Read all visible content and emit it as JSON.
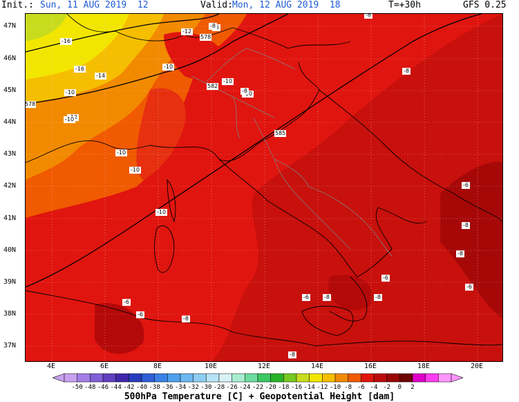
{
  "header": {
    "init_label": "Init.:",
    "init_value": "Sun, 11 AUG 2019  12",
    "valid_label": "Valid:",
    "valid_value": "Mon, 12 AUG 2019  18",
    "lead": "T=+30h",
    "model": "GFS 0.25"
  },
  "map": {
    "variable": "500hPa Temperature [C] + Geopotential Height [dam]",
    "lat_labels": [
      "47N",
      "46N",
      "45N",
      "44N",
      "43N",
      "42N",
      "41N",
      "40N",
      "39N",
      "38N",
      "37N"
    ],
    "lon_labels": [
      "4E",
      "6E",
      "8E",
      "10E",
      "12E",
      "14E",
      "16E",
      "18E",
      "20E"
    ],
    "temperature_labels": [
      "-8",
      "-12",
      "-16",
      "-10",
      "-16",
      "-14",
      "-10",
      "-12",
      "-10",
      "-10",
      "-10",
      "-10",
      "-10",
      "-8",
      "-10",
      "-6",
      "-8",
      "-8",
      "-6",
      "-6",
      "-8",
      "-6",
      "-8",
      "-6",
      "-6",
      "-8",
      "-8",
      "-8",
      "-6",
      "-8"
    ],
    "height_labels": [
      "578",
      "582",
      "578",
      "585"
    ],
    "colors": {
      "yellow": "#f2e600",
      "green_yellow": "#c8dc1e",
      "gold": "#f5be00",
      "orange": "#f28a00",
      "dark_orange": "#f05a00",
      "red": "#e0150f",
      "dark_red": "#bd0a0a",
      "darker_red": "#9a0606"
    }
  },
  "colorbar": {
    "labels": [
      "-50",
      "-48",
      "-46",
      "-44",
      "-42",
      "-40",
      "-38",
      "-36",
      "-34",
      "-32",
      "-30",
      "-28",
      "-26",
      "-24",
      "-22",
      "-20",
      "-18",
      "-16",
      "-14",
      "-12",
      "-10",
      "-8",
      "-6",
      "-4",
      "-2",
      "0",
      "2"
    ],
    "colors": [
      "#c8a0f0",
      "#a47ee6",
      "#8060d6",
      "#6040c0",
      "#4028aa",
      "#2a3cbe",
      "#2f5fd6",
      "#3b82e6",
      "#4fa0ec",
      "#6cb8f0",
      "#8ccef4",
      "#b6e4f6",
      "#d8f2f6",
      "#a8ecd0",
      "#6edca0",
      "#3cc864",
      "#28b428",
      "#78c81e",
      "#c8dc1e",
      "#f2e600",
      "#f5be00",
      "#f28a00",
      "#f05a00",
      "#e0150f",
      "#bd0a0a",
      "#9a0606",
      "#6e0404",
      "#e000c8",
      "#ff3cf0",
      "#ff96ff"
    ]
  }
}
